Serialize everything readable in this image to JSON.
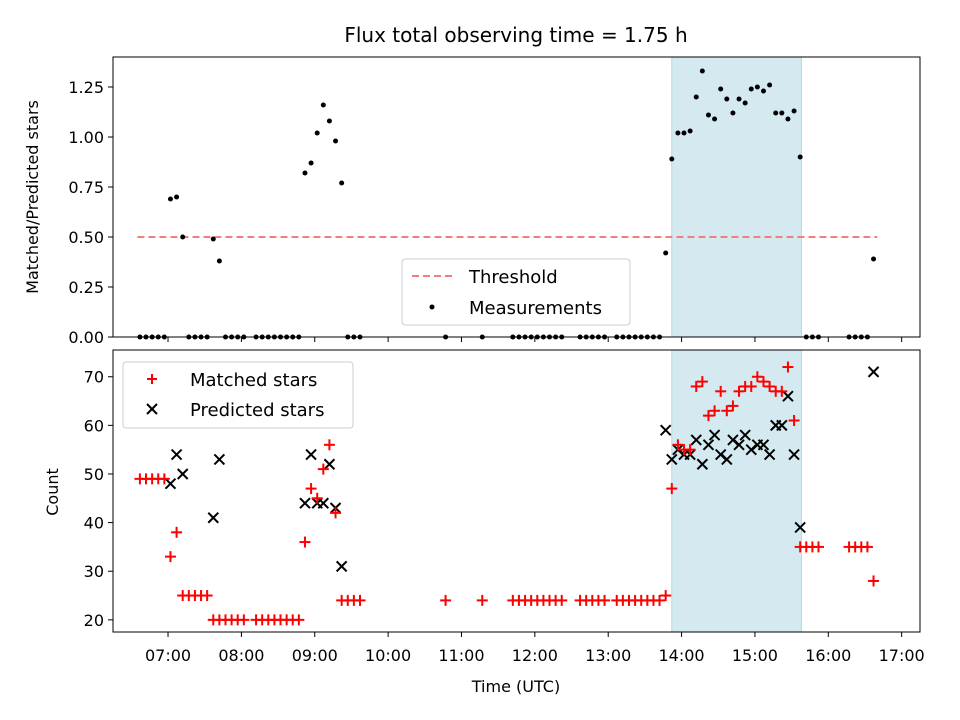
{
  "chart_data": [
    {
      "type": "scatter",
      "title": "Flux total observing time = 1.75 h",
      "xlabel": "",
      "ylabel": "Matched/Predicted stars",
      "xlim": [
        "06:15",
        "17:15"
      ],
      "ylim": [
        0,
        1.4
      ],
      "yticks": [
        0.0,
        0.25,
        0.5,
        0.75,
        1.0,
        1.25
      ],
      "ytick_labels": [
        "0.00",
        "0.25",
        "0.50",
        "0.75",
        "1.00",
        "1.25"
      ],
      "shaded_interval": [
        "13:52",
        "15:38"
      ],
      "shade_color": "#d4eaf0",
      "legend_position": "lower center",
      "threshold": {
        "name": "Threshold",
        "y": 0.5,
        "x_start": "06:35",
        "x_end": "16:40",
        "color": "#f08080"
      },
      "series": [
        {
          "name": "Measurements",
          "color": "#000000",
          "points": [
            [
              "06:37",
              0
            ],
            [
              "06:42",
              0
            ],
            [
              "06:47",
              0
            ],
            [
              "06:52",
              0
            ],
            [
              "06:57",
              0
            ],
            [
              "07:02",
              0.69
            ],
            [
              "07:07",
              0.7
            ],
            [
              "07:12",
              0.5
            ],
            [
              "07:17",
              0
            ],
            [
              "07:22",
              0
            ],
            [
              "07:27",
              0
            ],
            [
              "07:32",
              0
            ],
            [
              "07:37",
              0.49
            ],
            [
              "07:42",
              0.38
            ],
            [
              "07:47",
              0
            ],
            [
              "07:52",
              0
            ],
            [
              "07:57",
              0
            ],
            [
              "08:02",
              0
            ],
            [
              "08:12",
              0
            ],
            [
              "08:17",
              0
            ],
            [
              "08:22",
              0
            ],
            [
              "08:27",
              0
            ],
            [
              "08:32",
              0
            ],
            [
              "08:37",
              0
            ],
            [
              "08:42",
              0
            ],
            [
              "08:47",
              0
            ],
            [
              "08:52",
              0.82
            ],
            [
              "08:57",
              0.87
            ],
            [
              "09:02",
              1.02
            ],
            [
              "09:07",
              1.16
            ],
            [
              "09:12",
              1.08
            ],
            [
              "09:17",
              0.98
            ],
            [
              "09:22",
              0.77
            ],
            [
              "09:27",
              0
            ],
            [
              "09:32",
              0
            ],
            [
              "09:37",
              0
            ],
            [
              "10:47",
              0
            ],
            [
              "11:17",
              0
            ],
            [
              "11:42",
              0
            ],
            [
              "11:47",
              0
            ],
            [
              "11:52",
              0
            ],
            [
              "11:57",
              0
            ],
            [
              "12:02",
              0
            ],
            [
              "12:07",
              0
            ],
            [
              "12:12",
              0
            ],
            [
              "12:17",
              0
            ],
            [
              "12:22",
              0
            ],
            [
              "12:37",
              0
            ],
            [
              "12:42",
              0
            ],
            [
              "12:47",
              0
            ],
            [
              "12:52",
              0
            ],
            [
              "12:57",
              0
            ],
            [
              "13:07",
              0
            ],
            [
              "13:12",
              0
            ],
            [
              "13:17",
              0
            ],
            [
              "13:22",
              0
            ],
            [
              "13:27",
              0
            ],
            [
              "13:32",
              0
            ],
            [
              "13:37",
              0
            ],
            [
              "13:42",
              0
            ],
            [
              "13:47",
              0.42
            ],
            [
              "13:52",
              0.89
            ],
            [
              "13:57",
              1.02
            ],
            [
              "14:02",
              1.02
            ],
            [
              "14:07",
              1.03
            ],
            [
              "14:12",
              1.2
            ],
            [
              "14:17",
              1.33
            ],
            [
              "14:22",
              1.11
            ],
            [
              "14:27",
              1.09
            ],
            [
              "14:32",
              1.24
            ],
            [
              "14:37",
              1.19
            ],
            [
              "14:42",
              1.12
            ],
            [
              "14:47",
              1.19
            ],
            [
              "14:52",
              1.17
            ],
            [
              "14:57",
              1.24
            ],
            [
              "15:02",
              1.25
            ],
            [
              "15:07",
              1.23
            ],
            [
              "15:12",
              1.26
            ],
            [
              "15:17",
              1.12
            ],
            [
              "15:22",
              1.12
            ],
            [
              "15:27",
              1.09
            ],
            [
              "15:32",
              1.13
            ],
            [
              "15:37",
              0.9
            ],
            [
              "15:42",
              0
            ],
            [
              "15:47",
              0
            ],
            [
              "15:52",
              0
            ],
            [
              "16:17",
              0
            ],
            [
              "16:22",
              0
            ],
            [
              "16:27",
              0
            ],
            [
              "16:32",
              0
            ],
            [
              "16:37",
              0.39
            ]
          ]
        }
      ]
    },
    {
      "type": "scatter",
      "title": "",
      "xlabel": "Time (UTC)",
      "ylabel": "Count",
      "xlim": [
        "06:15",
        "17:15"
      ],
      "ylim": [
        17.5,
        75.5
      ],
      "xticks": [
        "07:00",
        "08:00",
        "09:00",
        "10:00",
        "11:00",
        "12:00",
        "13:00",
        "14:00",
        "15:00",
        "16:00",
        "17:00"
      ],
      "yticks": [
        20,
        30,
        40,
        50,
        60,
        70
      ],
      "shaded_interval": [
        "13:52",
        "15:38"
      ],
      "shade_color": "#d4eaf0",
      "legend_position": "upper left",
      "series": [
        {
          "name": "Matched stars",
          "color": "#ff0000",
          "marker": "plus",
          "points": [
            [
              "06:37",
              49
            ],
            [
              "06:42",
              49
            ],
            [
              "06:47",
              49
            ],
            [
              "06:52",
              49
            ],
            [
              "06:57",
              49
            ],
            [
              "07:02",
              33
            ],
            [
              "07:07",
              38
            ],
            [
              "07:12",
              25
            ],
            [
              "07:17",
              25
            ],
            [
              "07:22",
              25
            ],
            [
              "07:27",
              25
            ],
            [
              "07:32",
              25
            ],
            [
              "07:37",
              20
            ],
            [
              "07:42",
              20
            ],
            [
              "07:47",
              20
            ],
            [
              "07:52",
              20
            ],
            [
              "07:57",
              20
            ],
            [
              "08:02",
              20
            ],
            [
              "08:12",
              20
            ],
            [
              "08:17",
              20
            ],
            [
              "08:22",
              20
            ],
            [
              "08:27",
              20
            ],
            [
              "08:32",
              20
            ],
            [
              "08:37",
              20
            ],
            [
              "08:42",
              20
            ],
            [
              "08:47",
              20
            ],
            [
              "08:52",
              36
            ],
            [
              "08:57",
              47
            ],
            [
              "09:02",
              45
            ],
            [
              "09:07",
              51
            ],
            [
              "09:12",
              56
            ],
            [
              "09:17",
              42
            ],
            [
              "09:22",
              24
            ],
            [
              "09:27",
              24
            ],
            [
              "09:32",
              24
            ],
            [
              "09:37",
              24
            ],
            [
              "10:47",
              24
            ],
            [
              "11:17",
              24
            ],
            [
              "11:42",
              24
            ],
            [
              "11:47",
              24
            ],
            [
              "11:52",
              24
            ],
            [
              "11:57",
              24
            ],
            [
              "12:02",
              24
            ],
            [
              "12:07",
              24
            ],
            [
              "12:12",
              24
            ],
            [
              "12:17",
              24
            ],
            [
              "12:22",
              24
            ],
            [
              "12:37",
              24
            ],
            [
              "12:42",
              24
            ],
            [
              "12:47",
              24
            ],
            [
              "12:52",
              24
            ],
            [
              "12:57",
              24
            ],
            [
              "13:07",
              24
            ],
            [
              "13:12",
              24
            ],
            [
              "13:17",
              24
            ],
            [
              "13:22",
              24
            ],
            [
              "13:27",
              24
            ],
            [
              "13:32",
              24
            ],
            [
              "13:37",
              24
            ],
            [
              "13:42",
              24
            ],
            [
              "13:47",
              25
            ],
            [
              "13:52",
              47
            ],
            [
              "13:57",
              56
            ],
            [
              "14:02",
              55
            ],
            [
              "14:07",
              55
            ],
            [
              "14:12",
              68
            ],
            [
              "14:17",
              69
            ],
            [
              "14:22",
              62
            ],
            [
              "14:27",
              63
            ],
            [
              "14:32",
              67
            ],
            [
              "14:37",
              63
            ],
            [
              "14:42",
              64
            ],
            [
              "14:47",
              67
            ],
            [
              "14:52",
              68
            ],
            [
              "14:57",
              68
            ],
            [
              "15:02",
              70
            ],
            [
              "15:07",
              69
            ],
            [
              "15:12",
              68
            ],
            [
              "15:17",
              67
            ],
            [
              "15:22",
              67
            ],
            [
              "15:27",
              72
            ],
            [
              "15:32",
              61
            ],
            [
              "15:37",
              35
            ],
            [
              "15:42",
              35
            ],
            [
              "15:47",
              35
            ],
            [
              "15:52",
              35
            ],
            [
              "16:17",
              35
            ],
            [
              "16:22",
              35
            ],
            [
              "16:27",
              35
            ],
            [
              "16:32",
              35
            ],
            [
              "16:37",
              28
            ]
          ]
        },
        {
          "name": "Predicted stars",
          "color": "#000000",
          "marker": "x",
          "points": [
            [
              "07:02",
              48
            ],
            [
              "07:07",
              54
            ],
            [
              "07:12",
              50
            ],
            [
              "07:37",
              41
            ],
            [
              "07:42",
              53
            ],
            [
              "08:52",
              44
            ],
            [
              "08:57",
              54
            ],
            [
              "09:02",
              44
            ],
            [
              "09:07",
              44
            ],
            [
              "09:12",
              52
            ],
            [
              "09:17",
              43
            ],
            [
              "09:22",
              31
            ],
            [
              "13:47",
              59
            ],
            [
              "13:52",
              53
            ],
            [
              "13:57",
              55
            ],
            [
              "14:02",
              54
            ],
            [
              "14:07",
              54
            ],
            [
              "14:12",
              57
            ],
            [
              "14:17",
              52
            ],
            [
              "14:22",
              56
            ],
            [
              "14:27",
              58
            ],
            [
              "14:32",
              54
            ],
            [
              "14:37",
              53
            ],
            [
              "14:42",
              57
            ],
            [
              "14:47",
              56
            ],
            [
              "14:52",
              58
            ],
            [
              "14:57",
              55
            ],
            [
              "15:02",
              56
            ],
            [
              "15:07",
              56
            ],
            [
              "15:12",
              54
            ],
            [
              "15:17",
              60
            ],
            [
              "15:22",
              60
            ],
            [
              "15:27",
              66
            ],
            [
              "15:32",
              54
            ],
            [
              "15:37",
              39
            ],
            [
              "16:37",
              71
            ]
          ]
        }
      ]
    }
  ]
}
